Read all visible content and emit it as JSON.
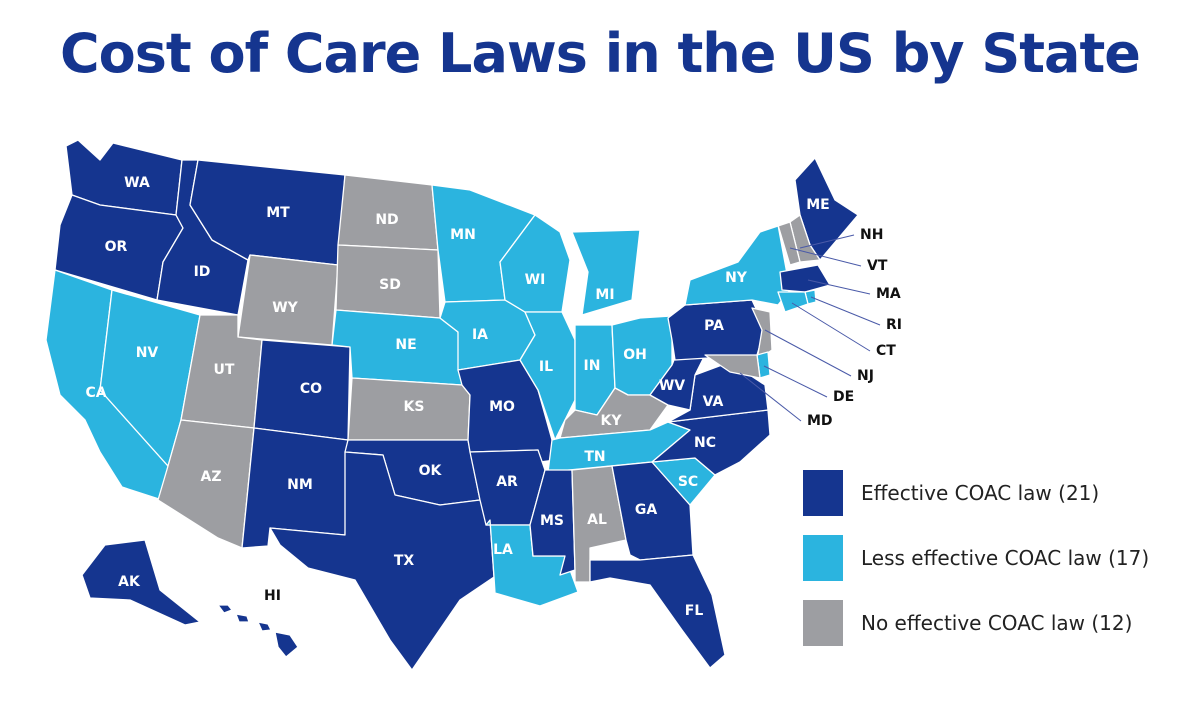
{
  "title": "Cost of Care Laws in the US by State",
  "colors": {
    "effective": "#15358f",
    "less_effective": "#2bb4df",
    "none": "#9d9ea2"
  },
  "legend": [
    {
      "key": "effective",
      "label": "Effective COAC law (21)"
    },
    {
      "key": "less_effective",
      "label": "Less effective COAC law (17)"
    },
    {
      "key": "none",
      "label": "No effective COAC law (12)"
    }
  ],
  "states": [
    {
      "abbr": "WA",
      "category": "effective"
    },
    {
      "abbr": "OR",
      "category": "effective"
    },
    {
      "abbr": "CA",
      "category": "less_effective"
    },
    {
      "abbr": "NV",
      "category": "less_effective"
    },
    {
      "abbr": "ID",
      "category": "effective"
    },
    {
      "abbr": "MT",
      "category": "effective"
    },
    {
      "abbr": "WY",
      "category": "none"
    },
    {
      "abbr": "UT",
      "category": "none"
    },
    {
      "abbr": "AZ",
      "category": "none"
    },
    {
      "abbr": "CO",
      "category": "effective"
    },
    {
      "abbr": "NM",
      "category": "effective"
    },
    {
      "abbr": "ND",
      "category": "none"
    },
    {
      "abbr": "SD",
      "category": "none"
    },
    {
      "abbr": "NE",
      "category": "less_effective"
    },
    {
      "abbr": "KS",
      "category": "none"
    },
    {
      "abbr": "OK",
      "category": "effective"
    },
    {
      "abbr": "TX",
      "category": "effective"
    },
    {
      "abbr": "MN",
      "category": "less_effective"
    },
    {
      "abbr": "IA",
      "category": "less_effective"
    },
    {
      "abbr": "MO",
      "category": "effective"
    },
    {
      "abbr": "AR",
      "category": "effective"
    },
    {
      "abbr": "LA",
      "category": "less_effective"
    },
    {
      "abbr": "WI",
      "category": "less_effective"
    },
    {
      "abbr": "IL",
      "category": "less_effective"
    },
    {
      "abbr": "MI",
      "category": "less_effective"
    },
    {
      "abbr": "IN",
      "category": "less_effective"
    },
    {
      "abbr": "OH",
      "category": "less_effective"
    },
    {
      "abbr": "KY",
      "category": "none"
    },
    {
      "abbr": "TN",
      "category": "less_effective"
    },
    {
      "abbr": "MS",
      "category": "effective"
    },
    {
      "abbr": "AL",
      "category": "none"
    },
    {
      "abbr": "GA",
      "category": "effective"
    },
    {
      "abbr": "FL",
      "category": "effective"
    },
    {
      "abbr": "SC",
      "category": "less_effective"
    },
    {
      "abbr": "NC",
      "category": "effective"
    },
    {
      "abbr": "VA",
      "category": "effective"
    },
    {
      "abbr": "WV",
      "category": "effective"
    },
    {
      "abbr": "PA",
      "category": "effective"
    },
    {
      "abbr": "NY",
      "category": "less_effective"
    },
    {
      "abbr": "ME",
      "category": "effective"
    },
    {
      "abbr": "NH",
      "category": "none"
    },
    {
      "abbr": "VT",
      "category": "none"
    },
    {
      "abbr": "MA",
      "category": "effective"
    },
    {
      "abbr": "RI",
      "category": "less_effective"
    },
    {
      "abbr": "CT",
      "category": "less_effective"
    },
    {
      "abbr": "NJ",
      "category": "none"
    },
    {
      "abbr": "DE",
      "category": "less_effective"
    },
    {
      "abbr": "MD",
      "category": "none"
    },
    {
      "abbr": "AK",
      "category": "effective"
    },
    {
      "abbr": "HI",
      "category": "effective"
    }
  ]
}
